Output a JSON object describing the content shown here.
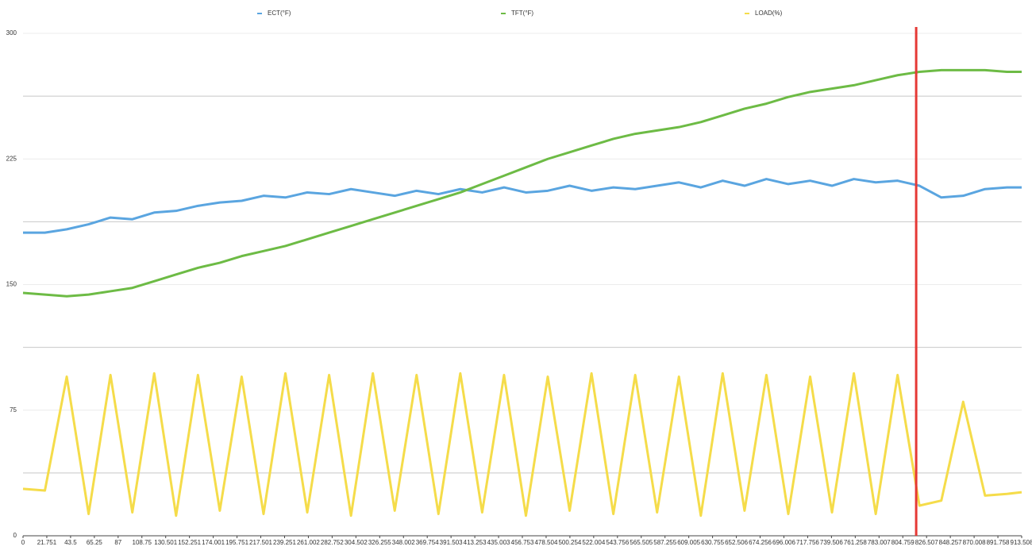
{
  "chart_data": {
    "type": "line",
    "x": [
      0,
      20,
      40,
      60,
      80,
      100,
      120,
      140,
      160,
      180,
      200,
      220,
      240,
      260,
      280,
      300,
      320,
      340,
      360,
      380,
      400,
      420,
      440,
      460,
      480,
      500,
      520,
      540,
      560,
      580,
      600,
      620,
      640,
      660,
      680,
      700,
      720,
      740,
      760,
      780,
      800,
      820,
      840,
      860,
      880,
      900,
      913.508
    ],
    "series": [
      {
        "name": "ECT(°F)",
        "color": "#5aa5e0",
        "values": [
          181,
          181,
          183,
          186,
          190,
          189,
          193,
          194,
          197,
          199,
          200,
          203,
          202,
          205,
          204,
          207,
          205,
          203,
          206,
          204,
          207,
          205,
          208,
          205,
          206,
          209,
          206,
          208,
          207,
          209,
          211,
          208,
          212,
          209,
          213,
          210,
          212,
          209,
          213,
          211,
          212,
          209,
          202,
          203,
          207,
          208,
          208
        ]
      },
      {
        "name": "TFT(°F)",
        "color": "#6dbb45",
        "values": [
          145,
          144,
          143,
          144,
          146,
          148,
          152,
          156,
          160,
          163,
          167,
          170,
          173,
          177,
          181,
          185,
          189,
          193,
          197,
          201,
          205,
          210,
          215,
          220,
          225,
          229,
          233,
          237,
          240,
          242,
          244,
          247,
          251,
          255,
          258,
          262,
          265,
          267,
          269,
          272,
          275,
          277,
          278,
          278,
          278,
          277,
          277
        ]
      },
      {
        "name": "LOAD(%)",
        "color": "#f5dc4a",
        "values": [
          28,
          27,
          95,
          13,
          96,
          14,
          97,
          12,
          96,
          15,
          95,
          13,
          97,
          14,
          96,
          12,
          97,
          15,
          96,
          13,
          97,
          14,
          96,
          12,
          95,
          15,
          97,
          13,
          96,
          14,
          95,
          12,
          97,
          15,
          96,
          13,
          95,
          14,
          97,
          13,
          96,
          18,
          21,
          80,
          24,
          25,
          26
        ]
      }
    ],
    "xlim": [
      0,
      913.508
    ],
    "xticks": [
      0,
      21.751,
      43.5,
      65.25,
      87,
      108.75,
      130.501,
      152.251,
      174.001,
      195.751,
      217.501,
      239.251,
      261.002,
      282.752,
      304.502,
      326.255,
      348.002,
      369.754,
      391.503,
      413.253,
      435.003,
      456.753,
      478.504,
      500.254,
      522.004,
      543.756,
      565.505,
      587.255,
      609.005,
      630.755,
      652.506,
      674.256,
      696.006,
      717.756,
      739.506,
      761.258,
      783.007,
      804.759,
      826.507,
      848.257,
      870.008,
      891.758,
      913.508
    ],
    "ylim": [
      0,
      300
    ],
    "yticks": [
      0,
      75,
      150,
      225,
      300
    ],
    "minor_yticks": [
      37.5,
      112.5,
      187.5,
      262.5
    ],
    "grid": true,
    "legend": "top",
    "vline": {
      "x": 817,
      "color": "#e53935"
    }
  }
}
